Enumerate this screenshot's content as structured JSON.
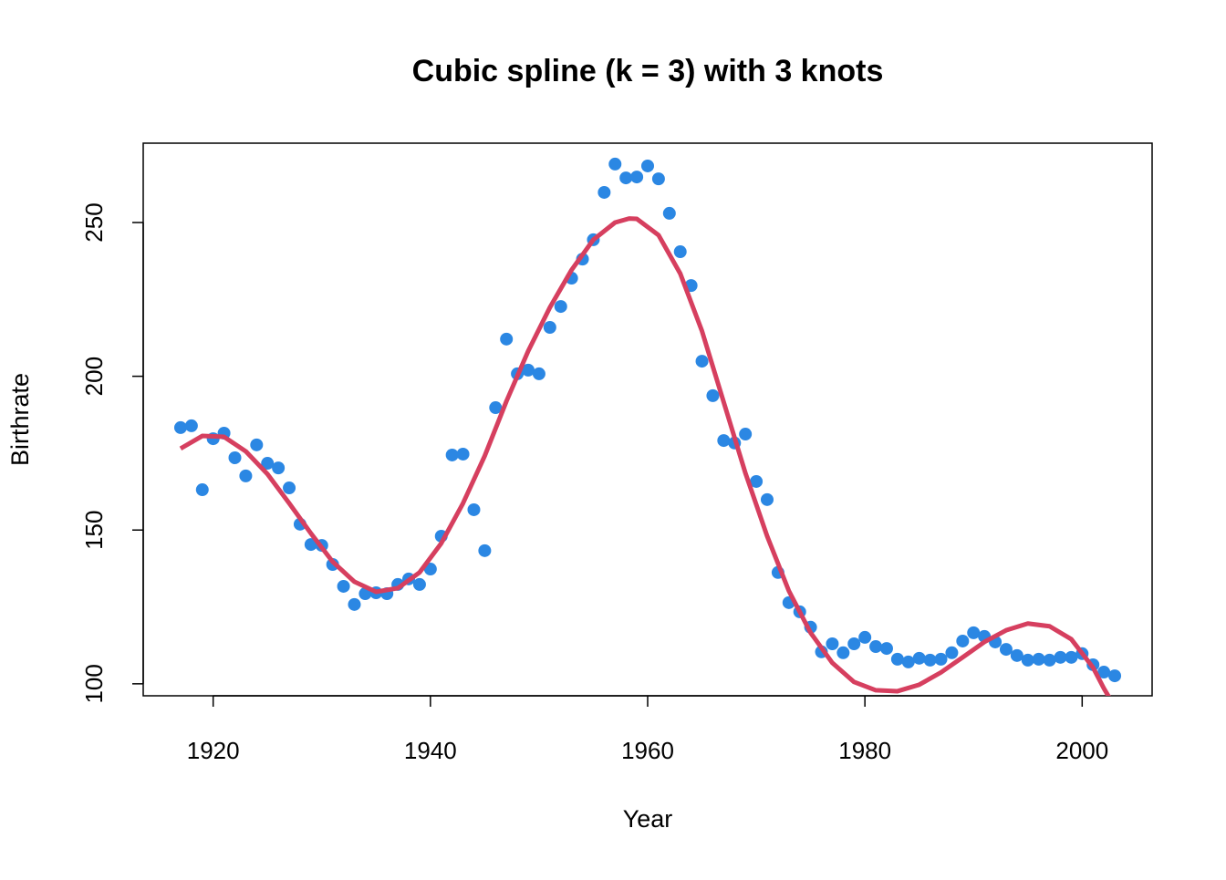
{
  "chart_data": {
    "type": "scatter",
    "title": "Cubic spline (k = 3) with 3 knots",
    "x_label": "Year",
    "y_label": "Birthrate",
    "xlim": [
      1913.56,
      2006.44
    ],
    "ylim": [
      96.1,
      275.8
    ],
    "xticks": [
      1920,
      1940,
      1960,
      1980,
      2000
    ],
    "yticks": [
      100,
      150,
      200,
      250
    ],
    "series": [
      {
        "type": "scatter",
        "color": "#2b87e3",
        "x": [
          1917,
          1918,
          1919,
          1920,
          1921,
          1922,
          1923,
          1924,
          1925,
          1926,
          1927,
          1928,
          1929,
          1930,
          1931,
          1932,
          1933,
          1934,
          1935,
          1936,
          1937,
          1938,
          1939,
          1940,
          1941,
          1942,
          1943,
          1944,
          1945,
          1946,
          1947,
          1948,
          1949,
          1950,
          1951,
          1952,
          1953,
          1954,
          1955,
          1956,
          1957,
          1958,
          1959,
          1960,
          1961,
          1962,
          1963,
          1964,
          1965,
          1966,
          1967,
          1968,
          1969,
          1970,
          1971,
          1972,
          1973,
          1974,
          1975,
          1976,
          1977,
          1978,
          1979,
          1980,
          1981,
          1982,
          1983,
          1984,
          1985,
          1986,
          1987,
          1988,
          1989,
          1990,
          1991,
          1992,
          1993,
          1994,
          1995,
          1996,
          1997,
          1998,
          1999,
          2000,
          2001,
          2002,
          2003
        ],
        "values": [
          183.3,
          183.9,
          163.1,
          179.7,
          181.5,
          173.5,
          167.6,
          177.7,
          171.7,
          170.2,
          163.7,
          151.9,
          145.3,
          145.0,
          138.8,
          131.7,
          125.8,
          129.3,
          129.6,
          129.3,
          132.3,
          134.1,
          132.3,
          137.3,
          148.0,
          174.4,
          174.7,
          156.6,
          143.3,
          189.8,
          212.1,
          200.8,
          202.0,
          200.8,
          215.9,
          222.7,
          231.9,
          238.1,
          244.4,
          259.8,
          269.0,
          264.5,
          264.8,
          268.4,
          264.2,
          253.0,
          240.5,
          229.5,
          204.9,
          193.7,
          179.1,
          178.3,
          181.2,
          165.8,
          159.9,
          136.2,
          126.4,
          123.4,
          118.4,
          110.4,
          113.0,
          110.1,
          113.0,
          115.1,
          112.1,
          111.5,
          108.0,
          107.1,
          108.3,
          107.7,
          108.0,
          110.1,
          113.9,
          116.6,
          115.4,
          113.6,
          111.2,
          109.2,
          107.7,
          108.0,
          107.7,
          108.6,
          108.6,
          109.8,
          106.2,
          103.8,
          102.6
        ]
      },
      {
        "type": "line",
        "color": "#d63f5f",
        "x": [
          1917,
          1919,
          1921,
          1923,
          1925,
          1927,
          1929,
          1931,
          1933,
          1935,
          1937,
          1939,
          1941,
          1943,
          1945,
          1947,
          1949,
          1951,
          1953,
          1955,
          1957,
          1958.3,
          1959,
          1961,
          1963,
          1965,
          1967,
          1969,
          1971,
          1973,
          1975,
          1977,
          1979,
          1981,
          1983,
          1985,
          1987,
          1989,
          1991,
          1993,
          1995,
          1997,
          1999,
          2001,
          2002,
          2002.5
        ],
        "values": [
          176.5,
          180.6,
          180.3,
          175.6,
          168.2,
          158.7,
          148.9,
          139.7,
          133.2,
          129.9,
          131.1,
          136.2,
          145.7,
          158.7,
          174.1,
          191.9,
          208.2,
          222.4,
          234.6,
          244.4,
          250.0,
          251.3,
          251.2,
          245.9,
          233.4,
          214.7,
          191.6,
          168.5,
          148.0,
          130.2,
          116.6,
          106.8,
          100.6,
          97.9,
          97.6,
          99.7,
          103.7,
          108.6,
          113.6,
          117.4,
          119.6,
          118.7,
          114.5,
          105.3,
          98.5,
          95.5
        ]
      }
    ]
  }
}
